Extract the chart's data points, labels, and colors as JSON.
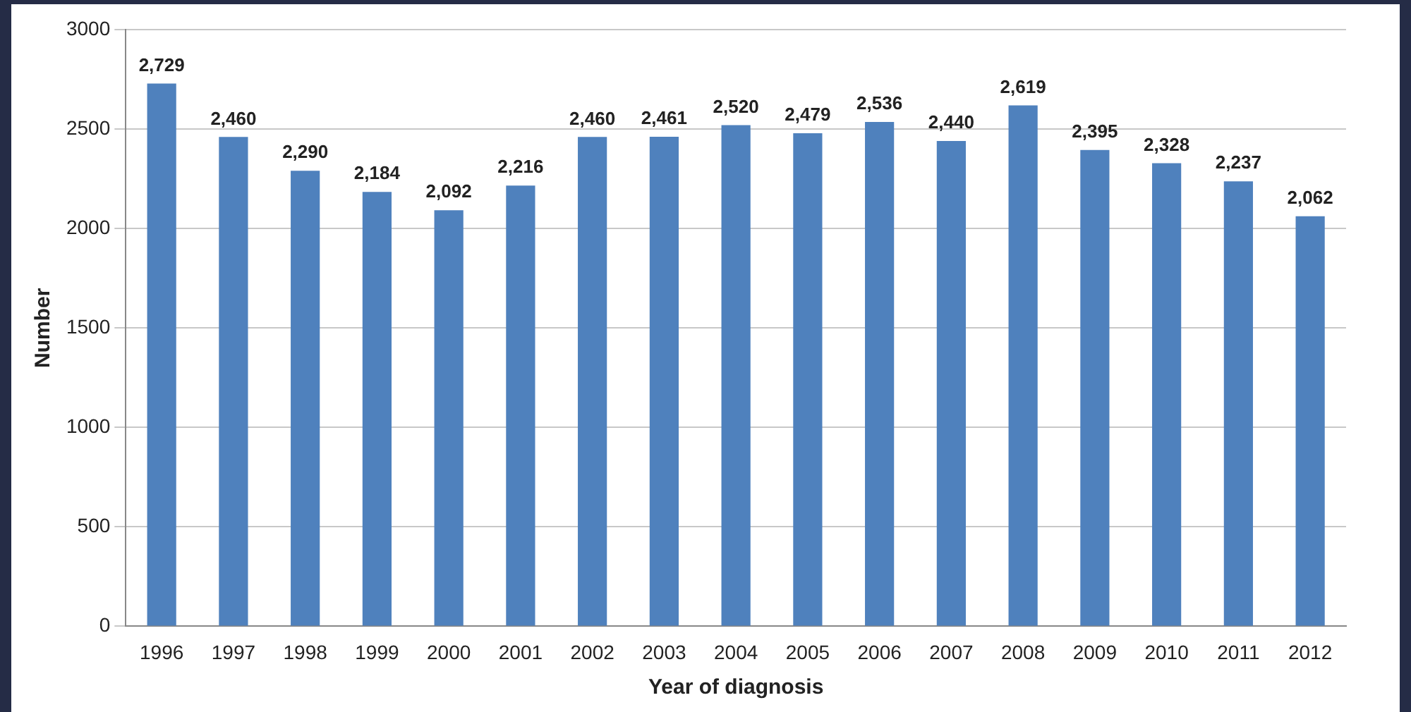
{
  "chart_data": {
    "type": "bar",
    "xlabel": "Year of diagnosis",
    "ylabel": "Number",
    "categories": [
      "1996",
      "1997",
      "1998",
      "1999",
      "2000",
      "2001",
      "2002",
      "2003",
      "2004",
      "2005",
      "2006",
      "2007",
      "2008",
      "2009",
      "2010",
      "2011",
      "2012"
    ],
    "values": [
      2729,
      2460,
      2290,
      2184,
      2092,
      2216,
      2460,
      2461,
      2520,
      2479,
      2536,
      2440,
      2619,
      2395,
      2328,
      2237,
      2062
    ],
    "value_labels": [
      "2,729",
      "2,460",
      "2,290",
      "2,184",
      "2,092",
      "2,216",
      "2,460",
      "2,461",
      "2,520",
      "2,479",
      "2,536",
      "2,440",
      "2,619",
      "2,395",
      "2,328",
      "2,237",
      "2,062"
    ],
    "color": "#4f81bd",
    "ylim": [
      0,
      3000
    ],
    "yticks": [
      0,
      500,
      1000,
      1500,
      2000,
      2500,
      3000
    ],
    "grid": "y",
    "legend": false
  }
}
